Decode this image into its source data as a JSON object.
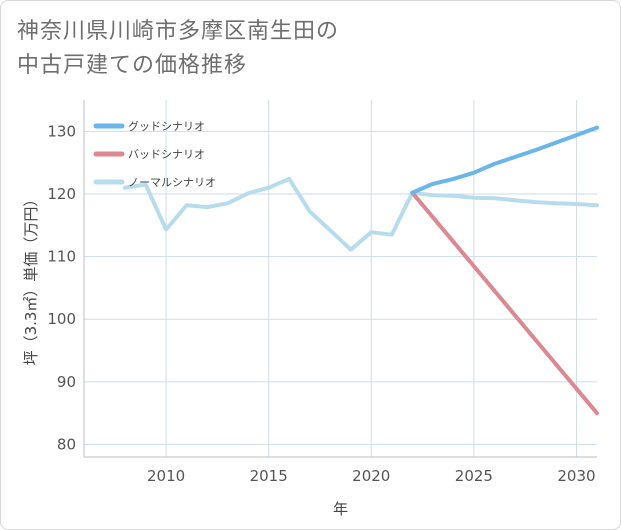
{
  "title_lines": [
    "神奈川県川崎市多摩区南生田の",
    "中古戸建ての価格推移"
  ],
  "chart_data": {
    "type": "line",
    "xlabel": "年",
    "ylabel": "坪（3.3㎡）単価（万円）",
    "xlim": [
      2006,
      2031
    ],
    "ylim": [
      78,
      135
    ],
    "x_ticks": [
      2010,
      2015,
      2020,
      2025,
      2030
    ],
    "y_ticks": [
      80,
      90,
      100,
      110,
      120,
      130
    ],
    "grid": true,
    "legend_position": "top-left",
    "series": [
      {
        "name": "グッドシナリオ",
        "color": "#6ab5ea",
        "x": [
          2022,
          2023,
          2024,
          2025,
          2026,
          2027,
          2028,
          2029,
          2030,
          2031
        ],
        "y": [
          120.2,
          121.6,
          122.4,
          123.4,
          124.8,
          125.9,
          127.0,
          128.2,
          129.4,
          130.6
        ]
      },
      {
        "name": "バッドシナリオ",
        "color": "#dd8890",
        "x": [
          2022,
          2031
        ],
        "y": [
          120.2,
          85.0
        ]
      },
      {
        "name": "ノーマルシナリオ",
        "color": "#b7dced",
        "x": [
          2008,
          2009,
          2010,
          2011,
          2012,
          2013,
          2014,
          2015,
          2016,
          2017,
          2018,
          2019,
          2020,
          2021,
          2022,
          2023,
          2024,
          2025,
          2026,
          2027,
          2028,
          2029,
          2030,
          2031
        ],
        "y": [
          121.0,
          121.5,
          114.3,
          118.2,
          117.9,
          118.5,
          120.1,
          121.0,
          122.4,
          117.2,
          114.2,
          111.1,
          113.9,
          113.5,
          120.2,
          119.8,
          119.7,
          119.4,
          119.3,
          119.0,
          118.7,
          118.5,
          118.4,
          118.2
        ]
      }
    ]
  }
}
